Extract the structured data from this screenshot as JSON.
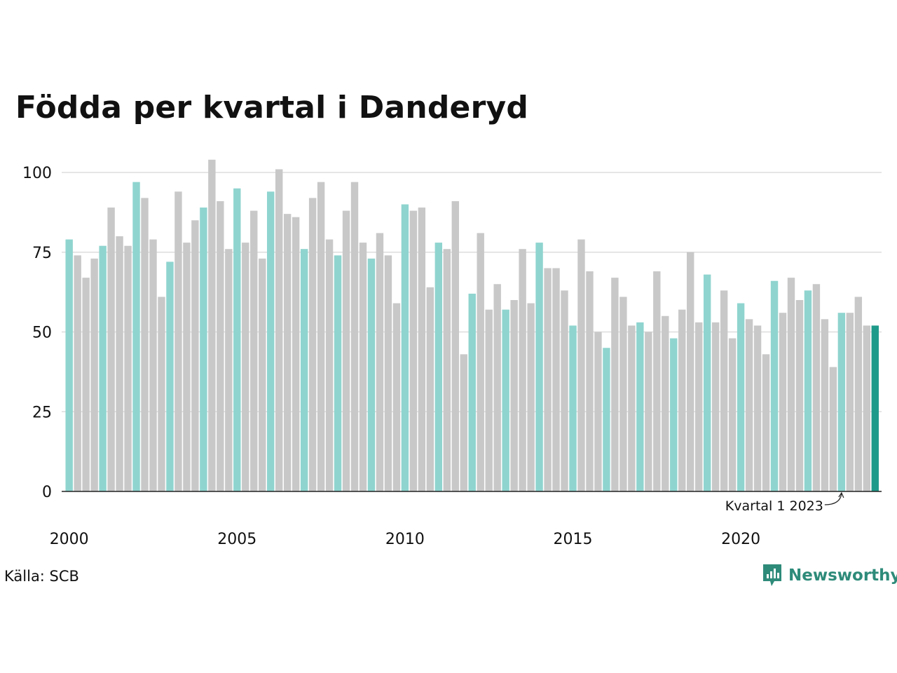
{
  "title": "Födda per kvartal i Danderyd",
  "source": "Källa: SCB",
  "brand": "Newsworthy",
  "colors": {
    "q1": "#8fd4cf",
    "other": "#c8c8c8",
    "highlight": "#1e9a8a",
    "grid": "#dddddd",
    "brand": "#2e8b7a"
  },
  "chart_data": {
    "type": "bar",
    "ylim": [
      0,
      105
    ],
    "yticks": [
      0,
      25,
      50,
      75,
      100
    ],
    "xticks": [
      "2000",
      "2005",
      "2010",
      "2015",
      "2020"
    ],
    "start": "2000 Q1",
    "annotation": "Kvartal 1 2023",
    "grid": true,
    "values": [
      79,
      74,
      67,
      73,
      77,
      89,
      80,
      77,
      97,
      92,
      79,
      61,
      72,
      94,
      78,
      85,
      89,
      104,
      91,
      76,
      95,
      78,
      88,
      73,
      94,
      101,
      87,
      86,
      76,
      92,
      97,
      79,
      74,
      88,
      97,
      78,
      73,
      81,
      74,
      59,
      90,
      88,
      89,
      64,
      78,
      76,
      91,
      43,
      62,
      81,
      57,
      65,
      57,
      60,
      76,
      59,
      78,
      70,
      70,
      63,
      52,
      79,
      69,
      50,
      45,
      67,
      61,
      52,
      53,
      50,
      69,
      55,
      48,
      57,
      75,
      53,
      68,
      53,
      63,
      48,
      59,
      54,
      52,
      43,
      66,
      56,
      67,
      60,
      63,
      65,
      54,
      39,
      56,
      56,
      61,
      52,
      52
    ]
  }
}
